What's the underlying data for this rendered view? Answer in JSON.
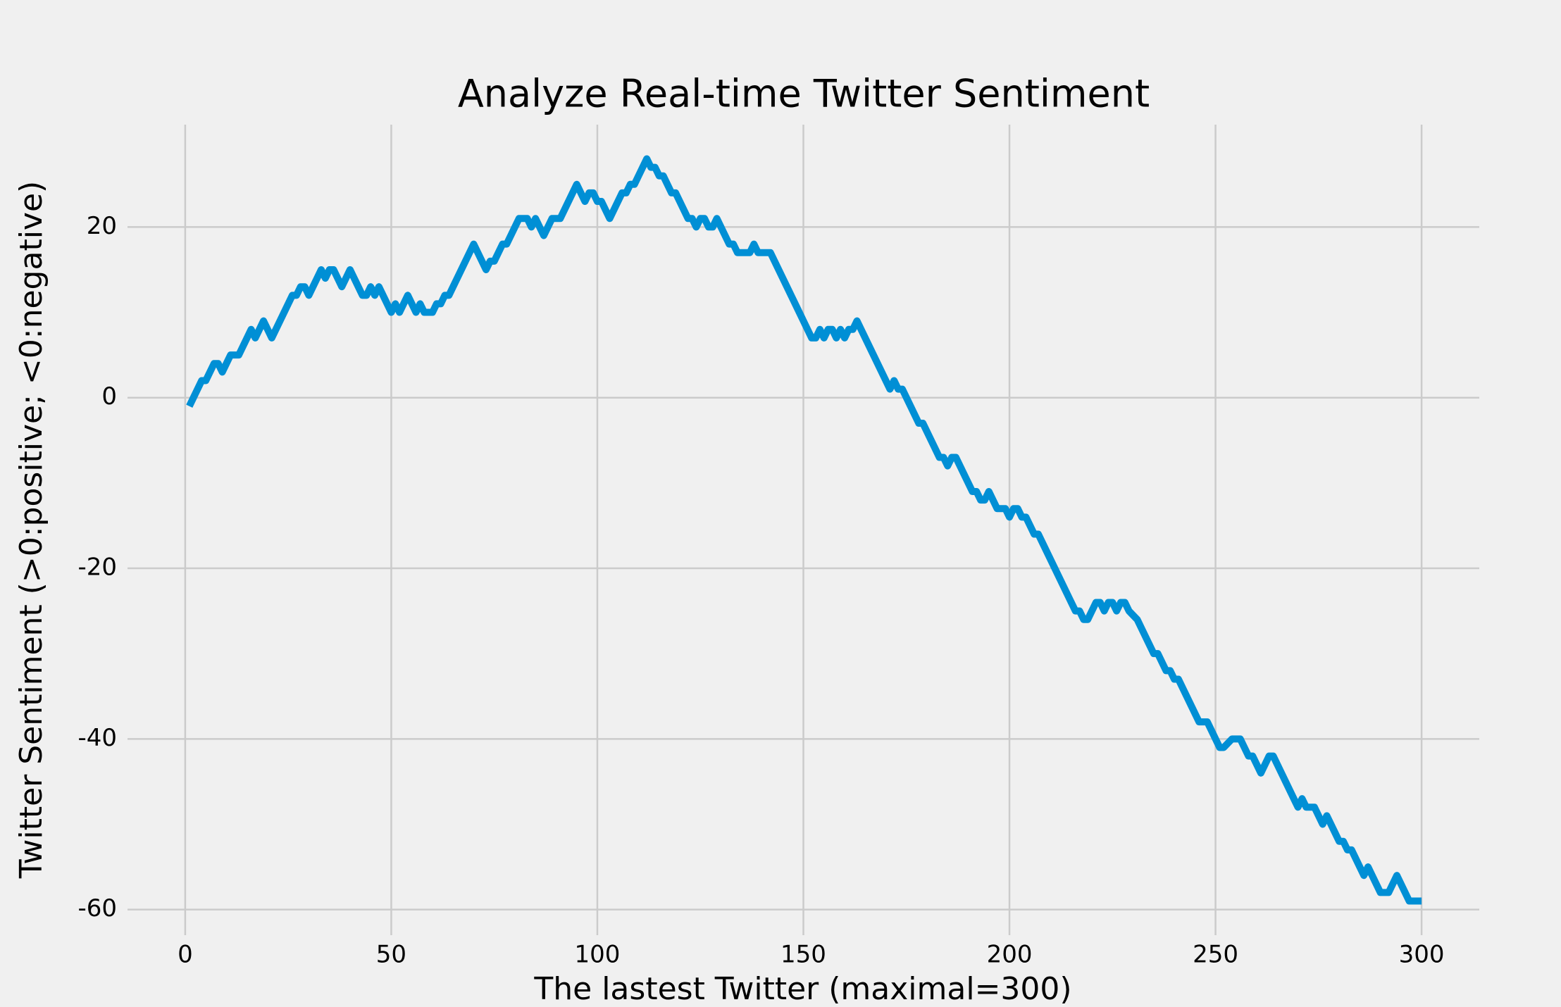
{
  "chart_data": {
    "type": "line",
    "title": "Analyze Real-time Twitter Sentiment",
    "xlabel": "The lastest Twitter (maximal=300)",
    "ylabel": "Twitter Sentiment (>0:positive; <0:negative)",
    "x": [
      1,
      4,
      5,
      7,
      8,
      9,
      11,
      13,
      16,
      17,
      19,
      21,
      26,
      27,
      28,
      29,
      30,
      33,
      34,
      35,
      36,
      38,
      40,
      43,
      44,
      45,
      46,
      47,
      50,
      51,
      52,
      54,
      56,
      57,
      58,
      60,
      61,
      62,
      63,
      64,
      70,
      73,
      74,
      75,
      77,
      78,
      81,
      83,
      84,
      85,
      87,
      89,
      91,
      95,
      97,
      98,
      99,
      100,
      101,
      103,
      106,
      107,
      108,
      109,
      112,
      113,
      114,
      115,
      116,
      118,
      119,
      122,
      123,
      124,
      125,
      126,
      127,
      128,
      129,
      132,
      133,
      134,
      137,
      138,
      139,
      142,
      152,
      153,
      154,
      155,
      156,
      157,
      158,
      159,
      160,
      161,
      162,
      163,
      171,
      172,
      173,
      174,
      178,
      179,
      183,
      184,
      185,
      186,
      187,
      191,
      192,
      193,
      194,
      195,
      197,
      199,
      200,
      201,
      202,
      203,
      204,
      206,
      207,
      216,
      217,
      218,
      219,
      221,
      222,
      223,
      224,
      225,
      226,
      227,
      228,
      229,
      231,
      235,
      236,
      238,
      239,
      240,
      241,
      246,
      248,
      251,
      252,
      254,
      256,
      258,
      259,
      261,
      263,
      264,
      269,
      270,
      271,
      272,
      274,
      276,
      277,
      279,
      280,
      281,
      282,
      283,
      286,
      287,
      290,
      292,
      294,
      297,
      300
    ],
    "values": [
      -1,
      2,
      2,
      4,
      4,
      3,
      5,
      5,
      8,
      7,
      9,
      7,
      12,
      12,
      13,
      13,
      12,
      15,
      14,
      15,
      15,
      13,
      15,
      12,
      12,
      13,
      12,
      13,
      10,
      11,
      10,
      12,
      10,
      11,
      10,
      10,
      11,
      11,
      12,
      12,
      18,
      15,
      16,
      16,
      18,
      18,
      21,
      21,
      20,
      21,
      19,
      21,
      21,
      25,
      23,
      24,
      24,
      23,
      23,
      21,
      24,
      24,
      25,
      25,
      28,
      27,
      27,
      26,
      26,
      24,
      24,
      21,
      21,
      20,
      21,
      21,
      20,
      20,
      21,
      18,
      18,
      17,
      17,
      18,
      17,
      17,
      7,
      7,
      8,
      7,
      8,
      8,
      7,
      8,
      7,
      8,
      8,
      9,
      1,
      2,
      1,
      1,
      -3,
      -3,
      -7,
      -7,
      -8,
      -7,
      -7,
      -11,
      -11,
      -12,
      -12,
      -11,
      -13,
      -13,
      -14,
      -13,
      -13,
      -14,
      -14,
      -16,
      -16,
      -25,
      -25,
      -26,
      -26,
      -24,
      -24,
      -25,
      -24,
      -24,
      -25,
      -24,
      -24,
      -25,
      -26,
      -30,
      -30,
      -32,
      -32,
      -33,
      -33,
      -38,
      -38,
      -41,
      -41,
      -40,
      -40,
      -42,
      -42,
      -44,
      -42,
      -42,
      -47,
      -48,
      -47,
      -48,
      -48,
      -50,
      -49,
      -51,
      -52,
      -52,
      -53,
      -53,
      -56,
      -55,
      -58,
      -58,
      -56,
      -59,
      -59
    ],
    "color": "#008fd5",
    "xlim": [
      -14,
      314
    ],
    "xticks": [
      0,
      50,
      100,
      150,
      200,
      250,
      300
    ],
    "ylim": [
      -63,
      32
    ],
    "yticks": [
      -60,
      -40,
      -20,
      0,
      20
    ],
    "grid": true
  }
}
